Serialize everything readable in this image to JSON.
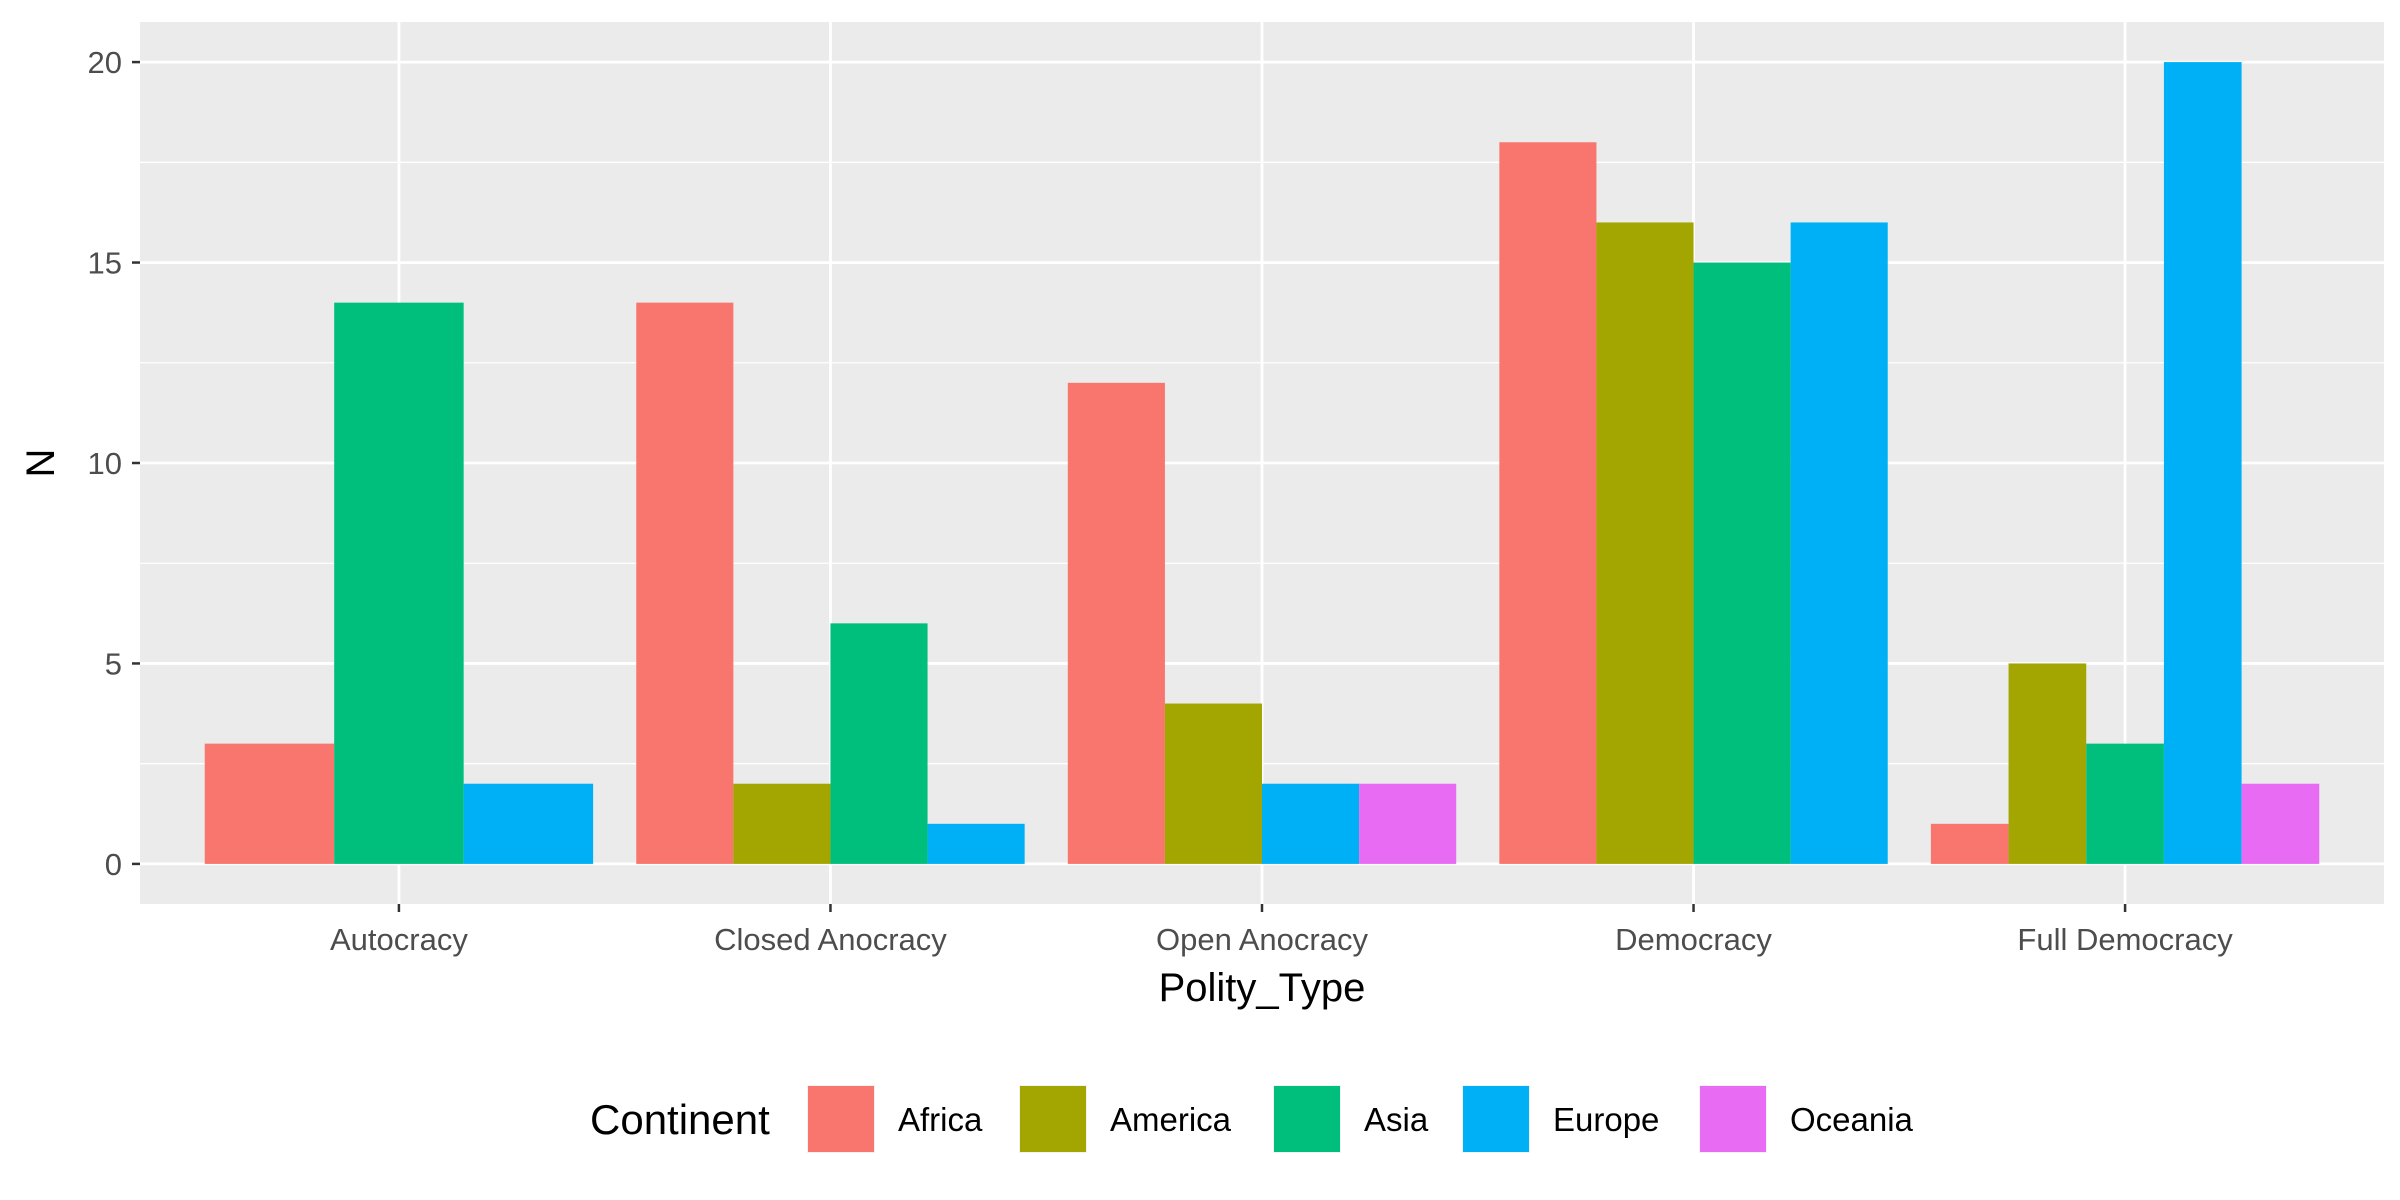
{
  "chart_data": {
    "type": "bar",
    "title": "",
    "xlabel": "Polity_Type",
    "ylabel": "N",
    "categories": [
      "Autocracy",
      "Closed Anocracy",
      "Open Anocracy",
      "Democracy",
      "Full Democracy"
    ],
    "yticks": [
      0,
      5,
      10,
      15,
      20
    ],
    "ylim": [
      -1,
      21
    ],
    "grid": true,
    "legend": {
      "title": "Continent",
      "position": "bottom"
    },
    "series": [
      {
        "name": "Africa",
        "color": "#F8766D",
        "values": [
          3,
          14,
          12,
          18,
          1
        ]
      },
      {
        "name": "America",
        "color": "#A3A500",
        "values": [
          null,
          2,
          4,
          16,
          5
        ]
      },
      {
        "name": "Asia",
        "color": "#00BF7D",
        "values": [
          14,
          6,
          null,
          15,
          3
        ]
      },
      {
        "name": "Europe",
        "color": "#00B0F6",
        "values": [
          2,
          1,
          2,
          16,
          20
        ]
      },
      {
        "name": "Oceania",
        "color": "#E76BF3",
        "values": [
          null,
          null,
          2,
          null,
          2
        ]
      }
    ]
  }
}
